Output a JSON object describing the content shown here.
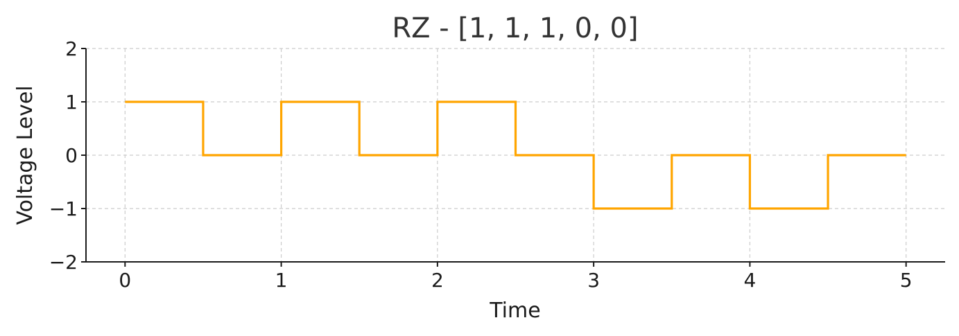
{
  "chart_data": {
    "type": "line",
    "title": "RZ - [1, 1, 1, 0, 0]",
    "xlabel": "Time",
    "ylabel": "Voltage Level",
    "xlim": [
      -0.25,
      5.25
    ],
    "ylim": [
      -2,
      2
    ],
    "xticks": [
      0,
      1,
      2,
      3,
      4,
      5
    ],
    "xtick_labels": [
      "0",
      "1",
      "2",
      "3",
      "4",
      "5"
    ],
    "yticks": [
      2,
      1,
      0,
      -1,
      -2
    ],
    "ytick_labels": [
      "2",
      "1",
      "0",
      "−1",
      "−2"
    ],
    "grid": true,
    "step": "post",
    "series": [
      {
        "color": "#FFA500",
        "x": [
          0,
          0.5,
          1,
          1.5,
          2,
          2.5,
          3,
          3.5,
          4,
          4.5,
          5
        ],
        "y": [
          1,
          0,
          1,
          0,
          1,
          0,
          -1,
          0,
          -1,
          0,
          0
        ]
      }
    ]
  }
}
